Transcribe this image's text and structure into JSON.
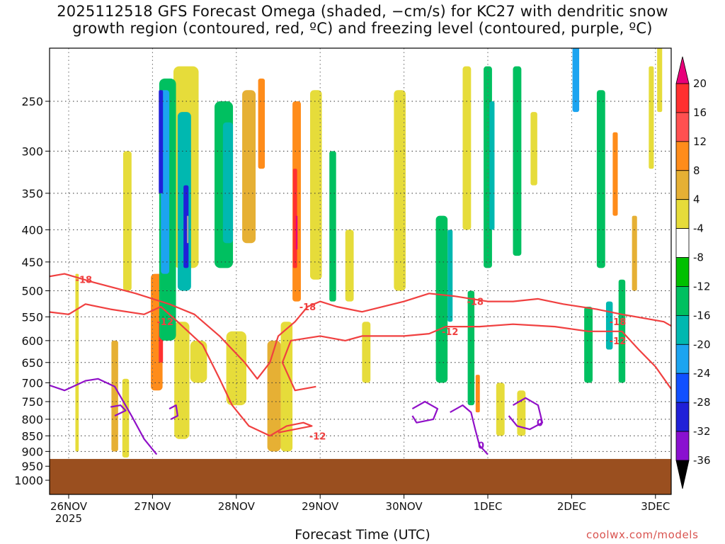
{
  "chart_data": {
    "type": "heatmap",
    "title_line1": "2025112518 GFS Forecast Omega (shaded, −cm/s) for KC27 with dendritic snow",
    "title_line2": "growth region (contoured, red, ºC) and freezing level (contoured, purple, ºC)",
    "xlabel": "Forecast Time (UTC)",
    "ylabel": "",
    "x_ticks": [
      "26NOV",
      "27NOV",
      "28NOV",
      "29NOV",
      "30NOV",
      "1DEC",
      "2DEC",
      "3DEC"
    ],
    "x_year": "2025",
    "y_ticks": [
      250,
      300,
      350,
      400,
      450,
      500,
      550,
      600,
      650,
      700,
      750,
      800,
      850,
      900,
      950,
      1000
    ],
    "y_axis_ptop": 200,
    "y_axis_pbottom": 1050,
    "surface_pressure": 925,
    "colorbar_labels": [
      "20",
      "16",
      "12",
      "8",
      "4",
      "-4",
      "-8",
      "-12",
      "-16",
      "-20",
      "-24",
      "-28",
      "-32",
      "-36"
    ],
    "colorbar_colors": [
      "#e8007a",
      "#ff3030",
      "#ff5050",
      "#ff8c1a",
      "#f0a030",
      "#e8c040",
      "#e8e040",
      "#ffffff",
      "#00c000",
      "#00c860",
      "#00c0b0",
      "#10a8f0",
      "#1060ff",
      "#2020e0",
      "#7000d0",
      "#9010d0",
      "#a0a0a0",
      "#000000"
    ],
    "omega_cells": [
      {
        "t": 0.1,
        "tw": 0.04,
        "p1": 470,
        "p2": 900,
        "v": 6
      },
      {
        "t": 0.55,
        "tw": 0.08,
        "p1": 600,
        "p2": 900,
        "v": 10
      },
      {
        "t": 0.68,
        "tw": 0.08,
        "p1": 690,
        "p2": 920,
        "v": 6
      },
      {
        "t": 0.7,
        "tw": 0.1,
        "p1": 300,
        "p2": 500,
        "v": 6
      },
      {
        "t": 1.05,
        "tw": 0.14,
        "p1": 470,
        "p2": 720,
        "v": 14
      },
      {
        "t": 1.1,
        "tw": 0.05,
        "p1": 560,
        "p2": 650,
        "v": 18
      },
      {
        "t": 1.35,
        "tw": 0.18,
        "p1": 560,
        "p2": 860,
        "v": 6
      },
      {
        "t": 1.55,
        "tw": 0.2,
        "p1": 600,
        "p2": 700,
        "v": 6
      },
      {
        "t": 1.4,
        "tw": 0.3,
        "p1": 220,
        "p2": 460,
        "v": 6
      },
      {
        "t": 1.18,
        "tw": 0.2,
        "p1": 230,
        "p2": 600,
        "v": -8
      },
      {
        "t": 1.15,
        "tw": 0.1,
        "p1": 240,
        "p2": 470,
        "v": -16
      },
      {
        "t": 1.1,
        "tw": 0.05,
        "p1": 240,
        "p2": 350,
        "v": -24
      },
      {
        "t": 1.38,
        "tw": 0.16,
        "p1": 260,
        "p2": 500,
        "v": -12
      },
      {
        "t": 1.4,
        "tw": 0.06,
        "p1": 340,
        "p2": 460,
        "v": -24
      },
      {
        "t": 1.42,
        "tw": 0.02,
        "p1": 380,
        "p2": 420,
        "v": -32
      },
      {
        "t": 1.85,
        "tw": 0.22,
        "p1": 250,
        "p2": 460,
        "v": -8
      },
      {
        "t": 1.9,
        "tw": 0.12,
        "p1": 270,
        "p2": 420,
        "v": -14
      },
      {
        "t": 2.15,
        "tw": 0.16,
        "p1": 240,
        "p2": 420,
        "v": 8
      },
      {
        "t": 2.3,
        "tw": 0.08,
        "p1": 230,
        "p2": 320,
        "v": 12
      },
      {
        "t": 2.0,
        "tw": 0.24,
        "p1": 580,
        "p2": 760,
        "v": 6
      },
      {
        "t": 2.45,
        "tw": 0.16,
        "p1": 600,
        "p2": 900,
        "v": 10
      },
      {
        "t": 2.6,
        "tw": 0.14,
        "p1": 560,
        "p2": 900,
        "v": 6
      },
      {
        "t": 2.72,
        "tw": 0.1,
        "p1": 250,
        "p2": 520,
        "v": 12
      },
      {
        "t": 2.7,
        "tw": 0.05,
        "p1": 320,
        "p2": 460,
        "v": 18
      },
      {
        "t": 2.72,
        "tw": 0.02,
        "p1": 380,
        "p2": 430,
        "v": 20
      },
      {
        "t": 2.95,
        "tw": 0.14,
        "p1": 240,
        "p2": 480,
        "v": 6
      },
      {
        "t": 3.15,
        "tw": 0.08,
        "p1": 300,
        "p2": 520,
        "v": -8
      },
      {
        "t": 3.35,
        "tw": 0.1,
        "p1": 400,
        "p2": 520,
        "v": 6
      },
      {
        "t": 3.55,
        "tw": 0.1,
        "p1": 560,
        "p2": 700,
        "v": 6
      },
      {
        "t": 3.95,
        "tw": 0.14,
        "p1": 240,
        "p2": 500,
        "v": 6
      },
      {
        "t": 4.45,
        "tw": 0.14,
        "p1": 380,
        "p2": 700,
        "v": -8
      },
      {
        "t": 4.55,
        "tw": 0.06,
        "p1": 400,
        "p2": 560,
        "v": -12
      },
      {
        "t": 4.75,
        "tw": 0.1,
        "p1": 220,
        "p2": 400,
        "v": 6
      },
      {
        "t": 4.8,
        "tw": 0.08,
        "p1": 500,
        "p2": 760,
        "v": -8
      },
      {
        "t": 4.88,
        "tw": 0.05,
        "p1": 680,
        "p2": 780,
        "v": 12
      },
      {
        "t": 5.0,
        "tw": 0.1,
        "p1": 220,
        "p2": 460,
        "v": -10
      },
      {
        "t": 5.05,
        "tw": 0.06,
        "p1": 250,
        "p2": 400,
        "v": -14
      },
      {
        "t": 5.15,
        "tw": 0.1,
        "p1": 700,
        "p2": 850,
        "v": 6
      },
      {
        "t": 5.35,
        "tw": 0.1,
        "p1": 220,
        "p2": 440,
        "v": -8
      },
      {
        "t": 5.4,
        "tw": 0.1,
        "p1": 720,
        "p2": 850,
        "v": 6
      },
      {
        "t": 5.55,
        "tw": 0.08,
        "p1": 260,
        "p2": 340,
        "v": 6
      },
      {
        "t": 6.05,
        "tw": 0.08,
        "p1": 200,
        "p2": 260,
        "v": -16
      },
      {
        "t": 6.2,
        "tw": 0.1,
        "p1": 530,
        "p2": 700,
        "v": -8
      },
      {
        "t": 6.35,
        "tw": 0.1,
        "p1": 240,
        "p2": 460,
        "v": -8
      },
      {
        "t": 6.45,
        "tw": 0.08,
        "p1": 520,
        "p2": 620,
        "v": -14
      },
      {
        "t": 6.52,
        "tw": 0.06,
        "p1": 280,
        "p2": 380,
        "v": 12
      },
      {
        "t": 6.6,
        "tw": 0.08,
        "p1": 480,
        "p2": 700,
        "v": -8
      },
      {
        "t": 6.75,
        "tw": 0.06,
        "p1": 380,
        "p2": 500,
        "v": 8
      },
      {
        "t": 6.95,
        "tw": 0.06,
        "p1": 220,
        "p2": 320,
        "v": 6
      },
      {
        "t": 7.05,
        "tw": 0.06,
        "p1": 200,
        "p2": 260,
        "v": 6
      }
    ],
    "snow_region_red": [
      {
        "level": -18,
        "points": [
          [
            -0.25,
            475
          ],
          [
            -0.05,
            470
          ],
          [
            0.3,
            485
          ],
          [
            0.8,
            505
          ],
          [
            1.2,
            525
          ],
          [
            1.5,
            545
          ],
          [
            1.8,
            590
          ],
          [
            2.1,
            650
          ],
          [
            2.25,
            690
          ],
          [
            2.4,
            650
          ],
          [
            2.5,
            590
          ],
          [
            2.7,
            560
          ],
          [
            2.85,
            530
          ],
          [
            3.0,
            520
          ],
          [
            3.2,
            530
          ],
          [
            3.5,
            540
          ],
          [
            4.0,
            520
          ],
          [
            4.3,
            505
          ],
          [
            4.6,
            510
          ],
          [
            5.0,
            520
          ],
          [
            5.3,
            520
          ],
          [
            5.6,
            515
          ],
          [
            5.9,
            525
          ],
          [
            6.3,
            535
          ],
          [
            6.6,
            545
          ],
          [
            7.1,
            560
          ],
          [
            7.3,
            580
          ],
          [
            7.35,
            560
          ]
        ]
      },
      {
        "level": -12,
        "points": [
          [
            -0.25,
            540
          ],
          [
            0.0,
            545
          ],
          [
            0.2,
            525
          ],
          [
            0.5,
            535
          ],
          [
            0.9,
            545
          ],
          [
            1.1,
            530
          ],
          [
            1.3,
            560
          ],
          [
            1.6,
            610
          ],
          [
            1.8,
            690
          ],
          [
            1.95,
            760
          ],
          [
            2.15,
            820
          ],
          [
            2.4,
            850
          ],
          [
            2.6,
            820
          ],
          [
            2.8,
            810
          ],
          [
            2.9,
            820
          ],
          [
            2.5,
            840
          ]
        ]
      },
      {
        "level": -12,
        "points": [
          [
            2.95,
            710
          ],
          [
            2.7,
            720
          ],
          [
            2.55,
            650
          ],
          [
            2.65,
            600
          ],
          [
            3.0,
            590
          ],
          [
            3.3,
            600
          ],
          [
            3.5,
            590
          ],
          [
            4.0,
            590
          ],
          [
            4.3,
            585
          ],
          [
            4.5,
            570
          ],
          [
            4.9,
            570
          ],
          [
            5.3,
            565
          ],
          [
            5.8,
            570
          ],
          [
            6.2,
            580
          ],
          [
            6.6,
            580
          ],
          [
            6.8,
            620
          ],
          [
            7.0,
            660
          ],
          [
            7.2,
            720
          ],
          [
            7.35,
            720
          ]
        ]
      }
    ],
    "freezing_level_purple": [
      {
        "level": 0,
        "points": [
          [
            -0.25,
            705
          ],
          [
            -0.05,
            720
          ],
          [
            0.2,
            695
          ],
          [
            0.35,
            690
          ],
          [
            0.55,
            710
          ],
          [
            0.75,
            790
          ],
          [
            0.9,
            860
          ],
          [
            1.05,
            910
          ]
        ]
      },
      {
        "level": 0,
        "points": [
          [
            4.1,
            770
          ],
          [
            4.25,
            750
          ],
          [
            4.4,
            770
          ],
          [
            4.35,
            800
          ],
          [
            4.15,
            810
          ],
          [
            4.1,
            790
          ]
        ]
      },
      {
        "level": 0,
        "points": [
          [
            4.55,
            780
          ],
          [
            4.7,
            760
          ],
          [
            4.8,
            780
          ],
          [
            4.85,
            830
          ],
          [
            4.9,
            880
          ],
          [
            5.0,
            910
          ]
        ]
      },
      {
        "level": 0,
        "points": [
          [
            5.3,
            760
          ],
          [
            5.45,
            740
          ],
          [
            5.6,
            760
          ],
          [
            5.65,
            810
          ],
          [
            5.5,
            830
          ],
          [
            5.35,
            820
          ],
          [
            5.25,
            790
          ]
        ]
      },
      {
        "level": 0,
        "points": [
          [
            0.5,
            765
          ],
          [
            0.62,
            760
          ],
          [
            0.68,
            775
          ],
          [
            0.55,
            790
          ]
        ]
      },
      {
        "level": 0,
        "points": [
          [
            1.2,
            770
          ],
          [
            1.28,
            760
          ],
          [
            1.3,
            790
          ],
          [
            1.22,
            800
          ]
        ]
      }
    ],
    "contour_labels": [
      {
        "text": "-18",
        "t": 0.18,
        "p": 480,
        "color": "red"
      },
      {
        "text": "-12",
        "t": 1.15,
        "p": 560,
        "color": "red"
      },
      {
        "text": "-18",
        "t": 2.85,
        "p": 530,
        "color": "red"
      },
      {
        "text": "-12",
        "t": 2.97,
        "p": 850,
        "color": "red"
      },
      {
        "text": "-18",
        "t": 4.85,
        "p": 520,
        "color": "red"
      },
      {
        "text": "-12",
        "t": 4.55,
        "p": 580,
        "color": "red"
      },
      {
        "text": "-18",
        "t": 6.55,
        "p": 560,
        "color": "red"
      },
      {
        "text": "-12",
        "t": 6.55,
        "p": 600,
        "color": "red"
      },
      {
        "text": "0",
        "t": 4.92,
        "p": 880,
        "color": "purple"
      },
      {
        "text": "0",
        "t": 5.62,
        "p": 810,
        "color": "purple"
      }
    ]
  },
  "axis_label": "Forecast Time (UTC)",
  "watermark": "coolwx.com/models"
}
